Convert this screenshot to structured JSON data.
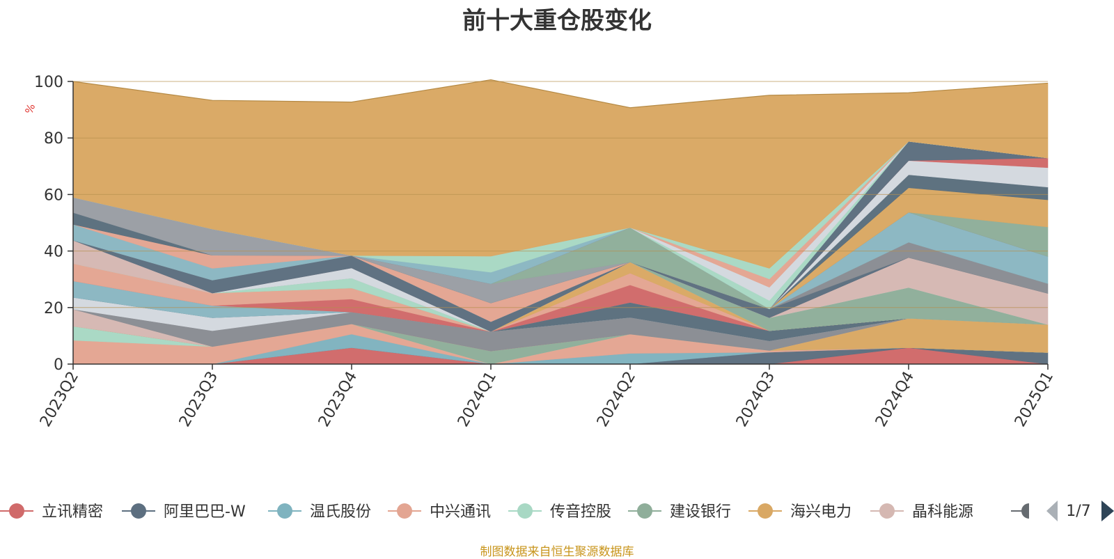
{
  "title": "前十大重仓股变化",
  "footer": "制图数据来自恒生聚源数据库",
  "legend_page": "1/7",
  "chart_data": {
    "type": "area",
    "stacked": true,
    "title": "前十大重仓股变化",
    "ylabel": "%",
    "ylim": [
      0,
      100
    ],
    "yticks": [
      0,
      20,
      40,
      60,
      80,
      100
    ],
    "grid": true,
    "legend": "bottom",
    "categories": [
      "2023Q2",
      "2023Q3",
      "2023Q4",
      "2024Q1",
      "2024Q2",
      "2024Q3",
      "2024Q4",
      "2025Q1"
    ],
    "series": [
      {
        "name": "立讯精密",
        "color": "#d06a6a",
        "values": [
          0,
          0,
          5.8,
          0,
          0,
          0,
          5.8,
          0
        ]
      },
      {
        "name": "阿里巴巴-W",
        "color": "#5d6f80",
        "values": [
          0,
          0,
          0,
          0,
          0,
          4.2,
          0,
          4.1
        ]
      },
      {
        "name": "温氏股份",
        "color": "#7fb3bf",
        "values": [
          0,
          0,
          4.8,
          0,
          3.8,
          0,
          0,
          0
        ]
      },
      {
        "name": "中兴通讯",
        "color": "#e3a592",
        "values": [
          8.4,
          6.2,
          3.6,
          0,
          6.8,
          0.6,
          0,
          0
        ]
      },
      {
        "name": "传音控股",
        "color": "#a8d8c4",
        "values": [
          5,
          0,
          0,
          0,
          0,
          0,
          0,
          0
        ]
      },
      {
        "name": "建设银行",
        "color": "#8fae9a",
        "values": [
          0,
          0,
          0,
          4.6,
          0,
          0,
          0,
          0
        ]
      },
      {
        "name": "海兴电力",
        "color": "#d9a864",
        "values": [
          0,
          0,
          0,
          0,
          0,
          0,
          10.4,
          9.9
        ]
      },
      {
        "name": "晶科能源",
        "color": "#d5b8b2",
        "values": [
          6,
          0,
          0,
          0,
          0,
          0,
          0,
          0
        ]
      },
      {
        "name": "",
        "color": "#8a8d93",
        "values": [
          0,
          5.6,
          4.2,
          6.9,
          5.9,
          3.4,
          0,
          0
        ]
      },
      {
        "name": "",
        "color": "#d3d8de",
        "values": [
          4.2,
          4.6,
          0,
          0,
          0,
          0,
          0,
          0
        ]
      },
      {
        "name": "",
        "color": "#5b6f7d",
        "values": [
          0,
          0,
          0,
          0,
          5.3,
          3.6,
          0,
          0
        ]
      },
      {
        "name": "",
        "color": "#8bb7c2",
        "values": [
          5.8,
          4.3,
          0,
          0,
          0,
          0,
          0,
          0
        ]
      },
      {
        "name": "",
        "color": "#d06a6a",
        "values": [
          0,
          0,
          4.6,
          0,
          6.2,
          0,
          0,
          0
        ]
      },
      {
        "name": "",
        "color": "#e3a592",
        "values": [
          6.2,
          4.4,
          3.9,
          0,
          4.2,
          0,
          0,
          0
        ]
      },
      {
        "name": "",
        "color": "#d9a864",
        "values": [
          0,
          0,
          0,
          0,
          3.9,
          0,
          0,
          0
        ]
      },
      {
        "name": "",
        "color": "#a8d8c4",
        "values": [
          0,
          0,
          3.5,
          0,
          0,
          0,
          0,
          0
        ]
      },
      {
        "name": "",
        "color": "#8fae9a",
        "values": [
          0,
          0,
          0,
          0,
          0,
          4.6,
          10.9,
          0
        ]
      },
      {
        "name": "",
        "color": "#d3d8de",
        "values": [
          0,
          0,
          3.6,
          0,
          0,
          0,
          0,
          0
        ]
      },
      {
        "name": "",
        "color": "#d5b8b2",
        "values": [
          8.2,
          0,
          0,
          0,
          0,
          0,
          10.6,
          11
        ]
      },
      {
        "name": "",
        "color": "#5d6f80",
        "values": [
          0,
          4.6,
          4.4,
          3.5,
          0,
          3.1,
          0,
          0
        ]
      },
      {
        "name": "",
        "color": "#8a8d93",
        "values": [
          0,
          0,
          0,
          0,
          0,
          0,
          5.4,
          3.5
        ]
      },
      {
        "name": "",
        "color": "#8bb7c2",
        "values": [
          5.6,
          4.2,
          0,
          0,
          0,
          0,
          10.6,
          9.6
        ]
      },
      {
        "name": "",
        "color": "#e3a592",
        "values": [
          0,
          4.6,
          0,
          6.6,
          0,
          0,
          0,
          0
        ]
      },
      {
        "name": "",
        "color": "#5b6f7d",
        "values": [
          4.2,
          0,
          0,
          0,
          0,
          0,
          0,
          0
        ]
      },
      {
        "name": "",
        "color": "#9a9ea4",
        "values": [
          5.4,
          9.3,
          0,
          6.8,
          0,
          0,
          0,
          0
        ]
      },
      {
        "name": "",
        "color": "#8fae9a",
        "values": [
          0,
          0,
          0,
          0,
          12.2,
          0,
          0,
          10.4
        ]
      },
      {
        "name": "",
        "color": "#d9a864",
        "values": [
          0,
          0,
          0,
          0,
          0,
          0,
          8.7,
          9.6
        ]
      },
      {
        "name": "",
        "color": "#5b6f7d",
        "values": [
          0,
          0,
          0,
          0,
          0,
          0,
          4.6,
          4.5
        ]
      },
      {
        "name": "",
        "color": "#d3d8de",
        "values": [
          0,
          0,
          0,
          0,
          0,
          0,
          5,
          6.9
        ]
      },
      {
        "name": "",
        "color": "#d06a6a",
        "values": [
          0,
          0,
          0,
          0,
          0,
          0,
          0,
          3.4
        ]
      },
      {
        "name": "",
        "color": "#5d6f80",
        "values": [
          0,
          0,
          0,
          0,
          0,
          0,
          6.8,
          0
        ]
      },
      {
        "name": "",
        "color": "#8bb7c2",
        "values": [
          0,
          0,
          0,
          4.1,
          0,
          0,
          0,
          0
        ]
      },
      {
        "name": "",
        "color": "#a8d8c4",
        "values": [
          0,
          0,
          0,
          5.7,
          0,
          3,
          0,
          0
        ]
      },
      {
        "name": "",
        "color": "#d3d8de",
        "values": [
          0,
          0,
          0,
          0,
          0,
          4.7,
          0,
          0
        ]
      },
      {
        "name": "",
        "color": "#e3a592",
        "values": [
          0,
          0,
          0,
          0,
          0,
          2.9,
          0,
          0
        ]
      },
      {
        "name": "",
        "color": "#a8d8c4",
        "values": [
          0,
          0,
          0,
          0,
          0,
          3.8,
          0,
          0
        ]
      },
      {
        "name": "",
        "color": "#d9a864",
        "values": [
          41,
          45.5,
          54.3,
          62.4,
          42.4,
          61.2,
          17.2,
          26.5
        ]
      }
    ]
  }
}
